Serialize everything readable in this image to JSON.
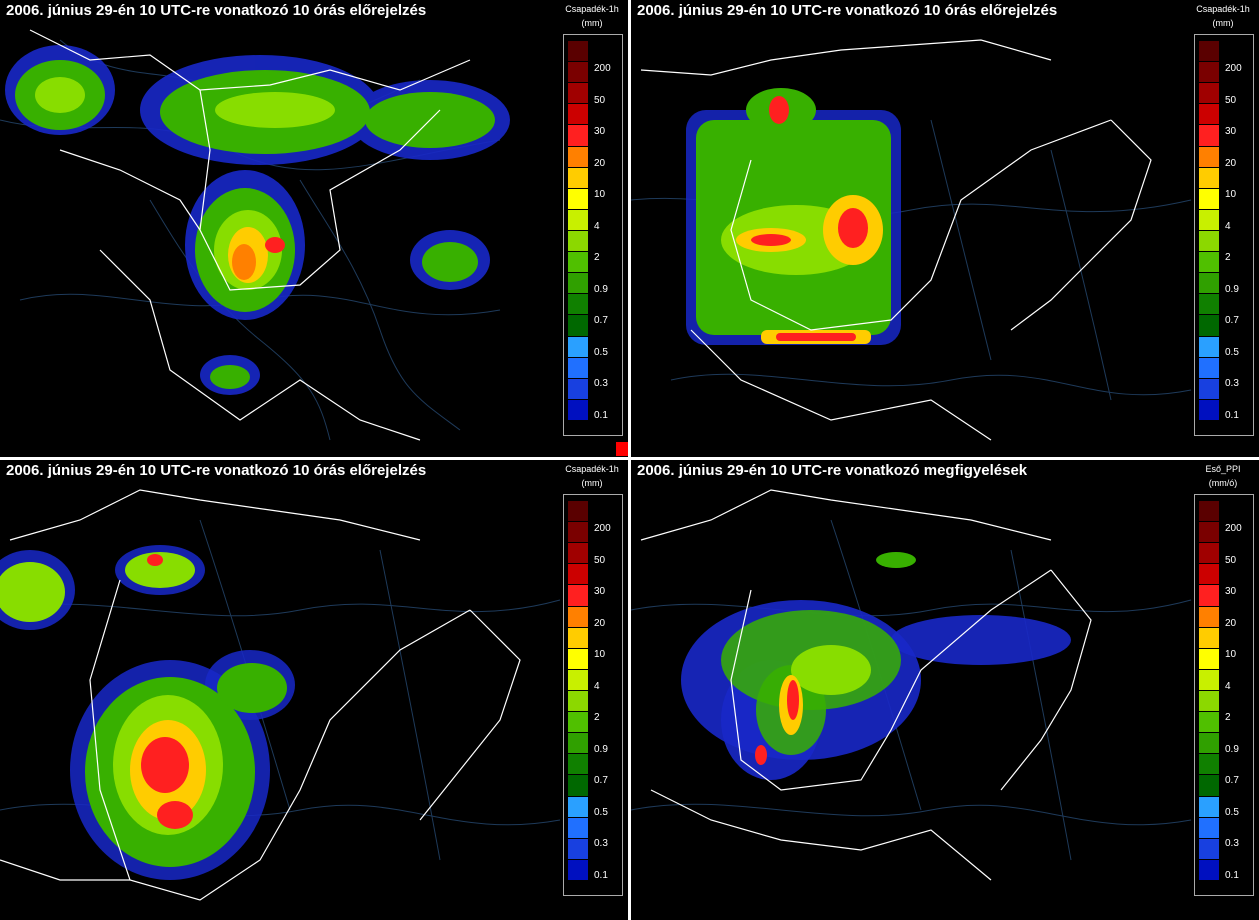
{
  "panels": [
    {
      "id": "p1",
      "title": "2006. június 29-én 10 UTC-re vonatkozó 10 órás előrejelzés",
      "legend_title": "Csapadék-1h",
      "legend_unit": "(mm)"
    },
    {
      "id": "p2",
      "title": "2006. június 29-én 10 UTC-re vonatkozó 10 órás előrejelzés",
      "legend_title": "Csapadék-1h",
      "legend_unit": "(mm)"
    },
    {
      "id": "p3",
      "title": "2006. június 29-én 10 UTC-re vonatkozó 10 órás előrejelzés",
      "legend_title": "Csapadék-1h",
      "legend_unit": "(mm)"
    },
    {
      "id": "p4",
      "title": "2006. június 29-én 10 UTC-re vonatkozó megfigyelések",
      "legend_title": "Eső_PPI",
      "legend_unit": "(mm/ó)"
    }
  ],
  "legend_labels": [
    "200",
    "50",
    "30",
    "20",
    "10",
    "4",
    "2",
    "0.9",
    "0.7",
    "0.5",
    "0.3",
    "0.1"
  ],
  "legend_colors": [
    "#5a0000",
    "#7a0000",
    "#a00000",
    "#cc0000",
    "#ff2020",
    "#ff8000",
    "#ffcc00",
    "#ffff00",
    "#c8f000",
    "#8cd800",
    "#50c000",
    "#30a000",
    "#108000",
    "#006800",
    "#2aa0ff",
    "#2070ff",
    "#1840e0",
    "#0010c0"
  ],
  "marker_color": "#ff0000"
}
